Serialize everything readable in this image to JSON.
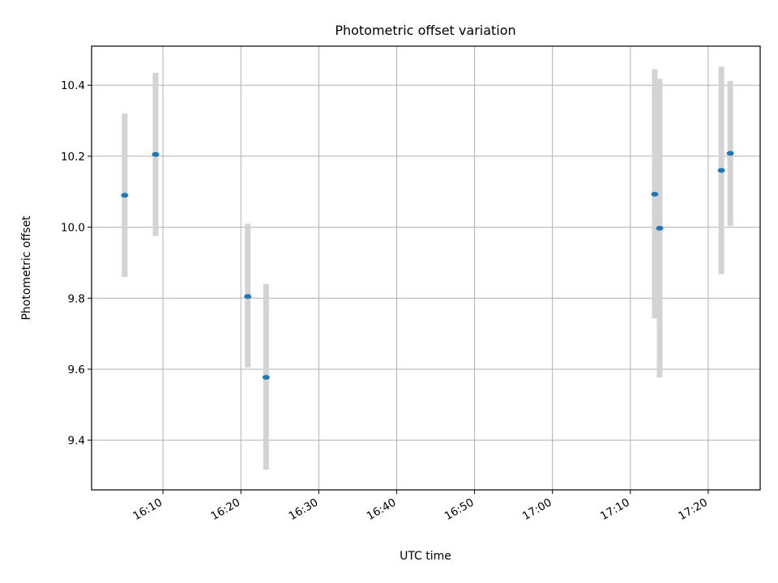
{
  "chart_data": {
    "type": "scatter",
    "title": "Photometric offset variation",
    "xlabel": "UTC time",
    "ylabel": "Photometric offset",
    "x_ticks": [
      "16:10",
      "16:20",
      "16:30",
      "16:40",
      "16:50",
      "17:00",
      "17:10",
      "17:20"
    ],
    "y_ticks": [
      "9.4",
      "9.6",
      "9.8",
      "10.0",
      "10.2",
      "10.4"
    ],
    "xlim": [
      "16:00:50",
      "17:26:40"
    ],
    "ylim": [
      9.26,
      10.51
    ],
    "grid": true,
    "point_color": "#1f77b4",
    "errorbar_color": "#d3d3d3",
    "points": [
      {
        "x": "16:05:05",
        "y": 10.09,
        "yerr_low": 9.86,
        "yerr_high": 10.32
      },
      {
        "x": "16:09:03",
        "y": 10.205,
        "yerr_low": 9.975,
        "yerr_high": 10.435
      },
      {
        "x": "16:20:53",
        "y": 9.805,
        "yerr_low": 9.605,
        "yerr_high": 10.01
      },
      {
        "x": "16:23:14",
        "y": 9.577,
        "yerr_low": 9.317,
        "yerr_high": 9.84
      },
      {
        "x": "17:13:08",
        "y": 10.093,
        "yerr_low": 9.743,
        "yerr_high": 10.445
      },
      {
        "x": "17:13:46",
        "y": 9.997,
        "yerr_low": 9.577,
        "yerr_high": 10.418
      },
      {
        "x": "17:21:41",
        "y": 10.16,
        "yerr_low": 9.868,
        "yerr_high": 10.452
      },
      {
        "x": "17:22:50",
        "y": 10.208,
        "yerr_low": 10.003,
        "yerr_high": 10.412
      }
    ]
  }
}
